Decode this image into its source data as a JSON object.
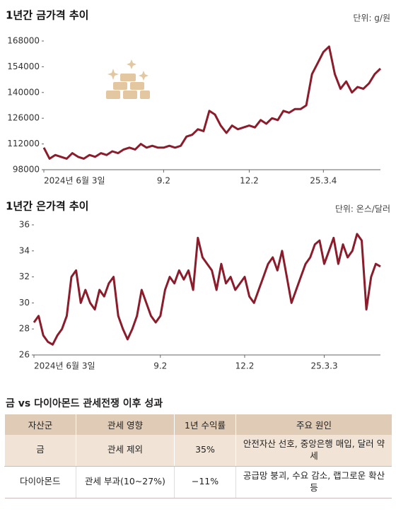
{
  "chart_data": [
    {
      "type": "line",
      "title": "1년간 금가격 추이",
      "unit": "단위: g/원",
      "color": "#8b1c2b",
      "categories": [
        "2024년 6월 3일",
        null,
        null,
        null,
        null,
        null,
        null,
        null,
        null,
        null,
        null,
        null,
        null,
        null,
        null,
        null,
        null,
        null,
        null,
        null,
        null,
        "9.2",
        null,
        null,
        null,
        null,
        null,
        null,
        null,
        null,
        null,
        null,
        null,
        null,
        null,
        null,
        "12.2",
        null,
        null,
        null,
        null,
        null,
        null,
        null,
        null,
        null,
        null,
        null,
        null,
        "25.3.4",
        null,
        null,
        null,
        null,
        null,
        null,
        null,
        null,
        null,
        null
      ],
      "values": [
        110000,
        104000,
        106000,
        105000,
        104000,
        107000,
        105000,
        104000,
        106000,
        105000,
        107000,
        106000,
        108000,
        107000,
        109000,
        110000,
        109000,
        112000,
        110000,
        111000,
        110000,
        110000,
        111000,
        110000,
        111000,
        116000,
        117000,
        120000,
        119000,
        130000,
        128000,
        122000,
        118000,
        122000,
        120000,
        121000,
        122000,
        121000,
        125000,
        123000,
        126000,
        125000,
        130000,
        129000,
        131000,
        131000,
        133000,
        150000,
        156000,
        162000,
        165000,
        150000,
        142000,
        146000,
        140000,
        143000,
        142000,
        145000,
        150000,
        153000
      ],
      "ylim": [
        98000,
        168000
      ],
      "yticks": [
        98000,
        112000,
        126000,
        140000,
        154000,
        168000
      ]
    },
    {
      "type": "line",
      "title": "1년간 은가격 추이",
      "unit": "단위: 온스/달러",
      "color": "#8b1c2b",
      "categories": [
        "2024년 6월 3일",
        null,
        null,
        null,
        null,
        null,
        null,
        null,
        null,
        null,
        null,
        null,
        null,
        null,
        null,
        null,
        null,
        null,
        null,
        null,
        null,
        null,
        null,
        null,
        null,
        null,
        null,
        "9.2",
        null,
        null,
        null,
        null,
        null,
        null,
        null,
        null,
        null,
        null,
        null,
        null,
        null,
        null,
        null,
        null,
        null,
        "12.2",
        null,
        null,
        null,
        null,
        null,
        null,
        null,
        null,
        null,
        null,
        null,
        null,
        null,
        null,
        null,
        null,
        "25.3.3",
        null,
        null,
        null,
        null,
        null,
        null,
        null,
        null,
        null,
        null,
        null,
        null
      ],
      "values": [
        28.5,
        29,
        27.5,
        27,
        26.8,
        27.5,
        28,
        29,
        32,
        32.5,
        30,
        31,
        30,
        29.5,
        31,
        30.5,
        31.5,
        32,
        29,
        28,
        27.2,
        28,
        29,
        31,
        30,
        29,
        28.5,
        29,
        31,
        32,
        31.5,
        32.5,
        31.8,
        32.5,
        31,
        35,
        33.5,
        33,
        32.5,
        31,
        33,
        31.5,
        32,
        31,
        31.5,
        32,
        30.5,
        30,
        31,
        32,
        33,
        33.5,
        32.5,
        34,
        32,
        30,
        31,
        32,
        33,
        33.5,
        34.5,
        34.8,
        33,
        34,
        35,
        33,
        34.5,
        33.5,
        34,
        35.3,
        34.8,
        29.5,
        32,
        33,
        32.8
      ],
      "ylim": [
        26,
        36
      ],
      "yticks": [
        26,
        28,
        30,
        32,
        34,
        36
      ]
    }
  ],
  "table": {
    "title": "금 vs 다이아몬드 관세전쟁 이후 성과",
    "header": [
      "자산군",
      "관세 영향",
      "1년 수익률",
      "주요 원인"
    ],
    "rows": [
      [
        "금",
        "관세 제외",
        "35%",
        "안전자산 선호, 중앙은행 매입, 달러 약세"
      ],
      [
        "다이아몬드",
        "관세 부과(10~27%)",
        "−11%",
        "공급망 붕괴, 수요 감소, 랩그로운 확산 등"
      ]
    ]
  }
}
